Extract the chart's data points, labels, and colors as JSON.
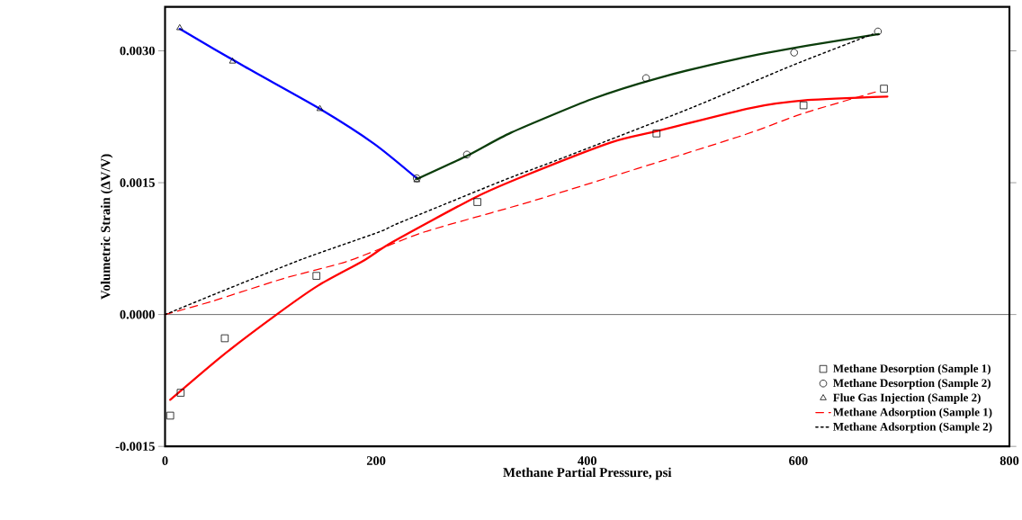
{
  "chart_data": {
    "type": "line",
    "xlabel": "Methane Partial Pressure, psi",
    "ylabel": "Volumetric Strain (ΔV/V)",
    "xlim": [
      0,
      800
    ],
    "ylim": [
      -0.0015,
      0.0035
    ],
    "xticks": [
      0,
      200,
      400,
      600,
      800
    ],
    "yticks": [
      {
        "value": -0.0015,
        "label": "-0.0015"
      },
      {
        "value": 0,
        "label": "0.0000"
      },
      {
        "value": 0.0015,
        "label": "0.0015"
      },
      {
        "value": 0.003,
        "label": "0.0030"
      }
    ],
    "ref_lines": [
      {
        "axis": "y",
        "value": 0,
        "color": "#000000"
      }
    ],
    "legend": "bottom right",
    "series": [
      {
        "color": "#0000ff",
        "marker": "none",
        "line_style": "solid",
        "x": [
          13.9,
          75.4,
          146.7,
          198.4,
          238.5
        ],
        "values": [
          0.00325,
          0.00282,
          0.00234,
          0.00194,
          0.00155
        ]
      },
      {
        "color": "#0b3d0b",
        "marker": "none",
        "line_style": "solid",
        "x": [
          238.5,
          286.9,
          327.9,
          404.1,
          467.2,
          542.6,
          609.0,
          676.2
        ],
        "values": [
          0.00154,
          0.00181,
          0.00207,
          0.00245,
          0.00269,
          0.00291,
          0.00306,
          0.00319
        ]
      },
      {
        "color": "#ff0000",
        "marker": "none",
        "line_style": "solid",
        "x": [
          4.9,
          54.1,
          105.7,
          145.1,
          187.7,
          214.8,
          293.4,
          341.0,
          423.0,
          467.2,
          554.9,
          609.0,
          684.4
        ],
        "values": [
          -0.00097,
          -0.00047,
          0.0,
          0.00033,
          0.00061,
          0.00082,
          0.00133,
          0.00158,
          0.00196,
          0.00209,
          0.00235,
          0.00244,
          0.00248
        ]
      },
      {
        "type": "scatter",
        "name": "Methane Desorption (Sample 1)",
        "color": "#000000",
        "marker": "square",
        "x": [
          4.9,
          14.8,
          56.6,
          143.4,
          295.9,
          465.6,
          604.9,
          681.1
        ],
        "values": [
          -0.00115,
          -0.00089,
          -0.00027,
          0.00044,
          0.00128,
          0.00206,
          0.00238,
          0.00257
        ]
      },
      {
        "type": "scatter",
        "name": "Methane Desorption (Sample 2)",
        "color": "#000000",
        "marker": "circle",
        "x": [
          238.5,
          286.0,
          455.7,
          596.0,
          675.4
        ],
        "values": [
          0.00155,
          0.00182,
          0.00269,
          0.00298,
          0.00322
        ]
      },
      {
        "type": "scatter",
        "name": "Flue Gas Injection (Sample 2)",
        "color": "#000000",
        "marker": "triangle",
        "x": [
          13.9,
          63.9,
          146.7,
          238.5
        ],
        "values": [
          0.00326,
          0.00288,
          0.00234,
          0.00153
        ]
      },
      {
        "name": "Methane Adsorption (Sample 1)",
        "color": "#ff0000",
        "marker": "none",
        "line_style": "dashed",
        "x": [
          0,
          44.3,
          112.3,
          173.8,
          245.9,
          353.3,
          542.6,
          602.5,
          675.4
        ],
        "values": [
          0,
          0.00015,
          0.00041,
          0.00061,
          0.00094,
          0.00131,
          0.00202,
          0.00228,
          0.00254
        ]
      },
      {
        "name": "Methane Adsorption (Sample 2)",
        "color": "#000000",
        "marker": "none",
        "line_style": "dotted",
        "x": [
          0,
          50.8,
          130.0,
          203.0,
          221.3,
          321.3,
          372.1,
          498.4,
          593.4,
          670.5
        ],
        "values": [
          0,
          0.00025,
          0.00063,
          0.00094,
          0.00104,
          0.00153,
          0.00176,
          0.00235,
          0.00283,
          0.00319
        ]
      }
    ]
  }
}
